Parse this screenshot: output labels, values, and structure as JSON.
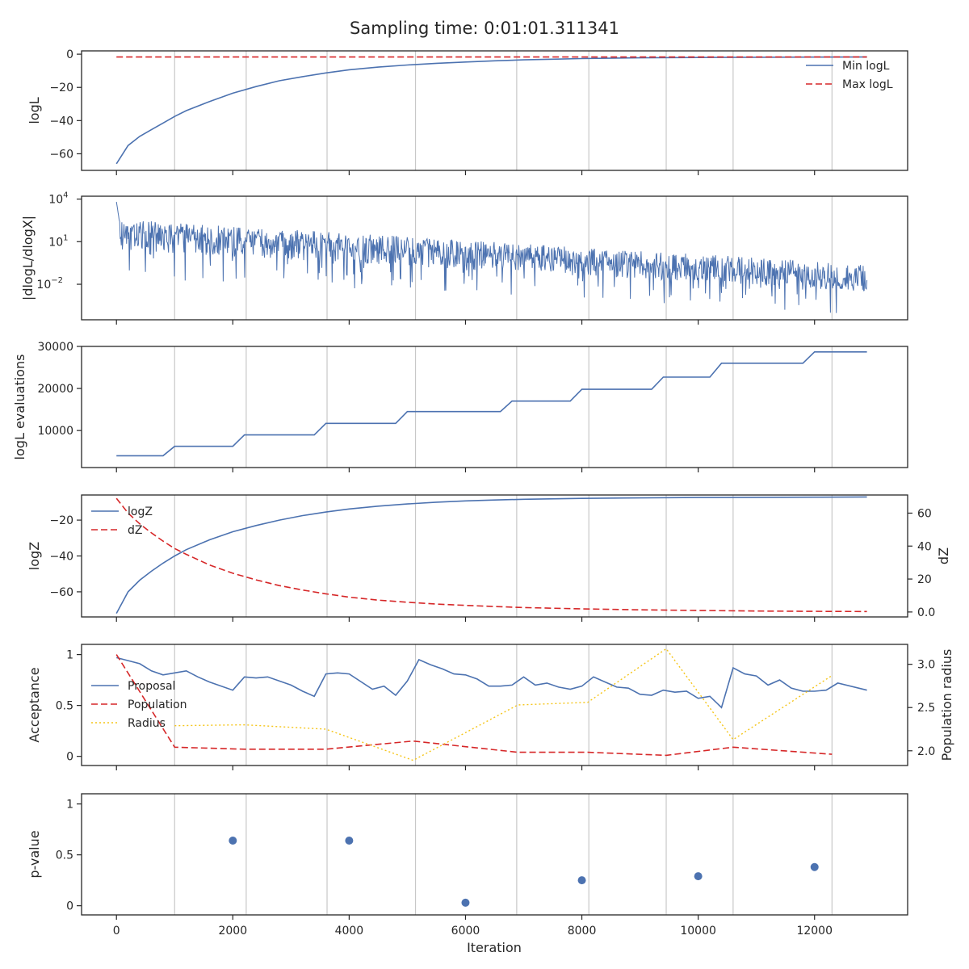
{
  "title": "Sampling time: 0:01:01.311341",
  "x_axis": {
    "label": "Iteration",
    "range": [
      -600,
      13600
    ],
    "ticks": [
      0,
      2000,
      4000,
      6000,
      8000,
      10000,
      12000
    ]
  },
  "vertical_markers": [
    1000,
    2230,
    3620,
    5140,
    6880,
    8120,
    9450,
    10600,
    12300
  ],
  "colors": {
    "blue": "#4c72b0",
    "red": "#d62728",
    "yellow": "#f5c518",
    "grid": "#c8c8c8"
  },
  "chart_data": [
    {
      "type": "line",
      "ylabel": "logL",
      "ylim": [
        -70,
        2
      ],
      "yticks": [
        0,
        -20,
        -40,
        -60
      ],
      "legend": "top-right",
      "series": [
        {
          "name": "Min logL",
          "style": "solid",
          "color": "#4c72b0",
          "x": [
            0,
            200,
            400,
            600,
            800,
            1000,
            1200,
            1600,
            2000,
            2400,
            2800,
            3200,
            3600,
            4000,
            4500,
            5000,
            5500,
            6000,
            6500,
            7000,
            7500,
            8000,
            9000,
            10000,
            11000,
            12000,
            12900
          ],
          "y": [
            -66,
            -55,
            -49.5,
            -45.5,
            -41.5,
            -37.5,
            -34,
            -28.5,
            -23.5,
            -19.5,
            -16,
            -13.5,
            -11.3,
            -9.4,
            -7.8,
            -6.5,
            -5.5,
            -4.7,
            -4.0,
            -3.4,
            -3.0,
            -2.6,
            -2.2,
            -2.0,
            -1.85,
            -1.75,
            -1.7
          ]
        },
        {
          "name": "Max logL",
          "style": "dashed",
          "color": "#d62728",
          "x": [
            0,
            12900
          ],
          "y": [
            -1.7,
            -1.7
          ]
        }
      ]
    },
    {
      "type": "line",
      "ylabel": "|dlogL/dlogX|",
      "scale": "log",
      "ylim_exp": [
        -4.5,
        4.2
      ],
      "ytick_exponents": [
        4,
        1,
        -2
      ],
      "series": [
        {
          "color": "#4c72b0",
          "x_range": [
            0,
            12900
          ],
          "upper_log": [
            2.6,
            -0.6
          ],
          "median_log": [
            1.9,
            -1.7
          ],
          "lower_log": [
            0.4,
            -2.5
          ],
          "spike_min_log": [
            -1.5,
            -4.2
          ],
          "peak_log": 3.8
        }
      ]
    },
    {
      "type": "line",
      "ylabel": "logL evaluations",
      "ylim": [
        1200,
        30000
      ],
      "yticks": [
        10000,
        20000,
        30000
      ],
      "series": [
        {
          "color": "#4c72b0",
          "x": [
            0,
            800,
            1000,
            2000,
            2200,
            3400,
            3600,
            4800,
            5000,
            6600,
            6800,
            7800,
            8000,
            9200,
            9400,
            10200,
            10400,
            11800,
            12000,
            12900
          ],
          "y": [
            4000,
            4000,
            6250,
            6250,
            8950,
            8950,
            11700,
            11700,
            14500,
            14500,
            17000,
            17000,
            19800,
            19800,
            22700,
            22700,
            26000,
            26000,
            28700,
            28700
          ]
        }
      ]
    },
    {
      "type": "line",
      "ylabel": "logZ",
      "ylabel_right": "dZ",
      "ylim": [
        -74,
        -6
      ],
      "yticks": [
        -20,
        -40,
        -60
      ],
      "ylim_right": [
        -3,
        71
      ],
      "yticks_right": [
        0,
        20,
        40,
        60
      ],
      "legend": "top-left",
      "series": [
        {
          "name": "logZ",
          "style": "solid",
          "color": "#4c72b0",
          "axis": "left",
          "x": [
            0,
            200,
            400,
            600,
            800,
            1000,
            1200,
            1600,
            2000,
            2400,
            2800,
            3200,
            3600,
            4000,
            4500,
            5000,
            5500,
            6000,
            6500,
            7000,
            8000,
            9000,
            10000,
            11000,
            12000,
            12900
          ],
          "y": [
            -72,
            -60,
            -53.5,
            -48.5,
            -44,
            -40,
            -36.5,
            -31,
            -26.5,
            -23,
            -20,
            -17.5,
            -15.5,
            -13.8,
            -12.2,
            -11.0,
            -10.0,
            -9.3,
            -8.8,
            -8.4,
            -7.9,
            -7.6,
            -7.4,
            -7.3,
            -7.2,
            -7.1
          ]
        },
        {
          "name": "dZ",
          "style": "dashed",
          "color": "#d62728",
          "axis": "right",
          "x": [
            0,
            200,
            400,
            600,
            800,
            1000,
            1200,
            1600,
            2000,
            2400,
            2800,
            3200,
            3600,
            4000,
            4500,
            5000,
            5500,
            6000,
            6500,
            7000,
            8000,
            9000,
            10000,
            11000,
            12000,
            12900
          ],
          "y": [
            69,
            60,
            53.5,
            48,
            43,
            38.5,
            35,
            28.5,
            23.5,
            19.5,
            16,
            13.3,
            11,
            9,
            7.2,
            5.9,
            4.8,
            4.0,
            3.3,
            2.7,
            1.9,
            1.3,
            0.9,
            0.6,
            0.4,
            0.3
          ]
        }
      ]
    },
    {
      "type": "line",
      "ylabel": "Acceptance",
      "ylabel_right": "Population radius",
      "ylim": [
        -0.09,
        1.1
      ],
      "yticks": [
        0.0,
        0.5,
        1.0
      ],
      "ylim_right": [
        1.83,
        3.23
      ],
      "yticks_right": [
        2.0,
        2.5,
        3.0
      ],
      "legend": "center-left",
      "series": [
        {
          "name": "Proposal",
          "style": "solid",
          "color": "#4c72b0",
          "axis": "left",
          "x": [
            0,
            400,
            600,
            800,
            1000,
            1200,
            1400,
            1600,
            2000,
            2200,
            2400,
            2600,
            3000,
            3200,
            3400,
            3600,
            3800,
            4000,
            4400,
            4600,
            4800,
            5000,
            5200,
            5400,
            5600,
            5800,
            6000,
            6200,
            6400,
            6600,
            6800,
            7000,
            7200,
            7400,
            7600,
            7800,
            8000,
            8200,
            8400,
            8600,
            8800,
            9000,
            9200,
            9400,
            9600,
            9800,
            10000,
            10200,
            10400,
            10600,
            10800,
            11000,
            11200,
            11400,
            11600,
            11800,
            12000,
            12200,
            12400,
            12900
          ],
          "y": [
            0.97,
            0.91,
            0.84,
            0.8,
            0.82,
            0.84,
            0.78,
            0.73,
            0.65,
            0.78,
            0.77,
            0.78,
            0.7,
            0.64,
            0.59,
            0.81,
            0.82,
            0.81,
            0.66,
            0.69,
            0.6,
            0.74,
            0.95,
            0.9,
            0.86,
            0.81,
            0.8,
            0.76,
            0.69,
            0.69,
            0.7,
            0.78,
            0.7,
            0.72,
            0.68,
            0.66,
            0.69,
            0.78,
            0.73,
            0.68,
            0.67,
            0.61,
            0.6,
            0.65,
            0.63,
            0.64,
            0.57,
            0.59,
            0.48,
            0.87,
            0.81,
            0.79,
            0.7,
            0.75,
            0.67,
            0.64,
            0.64,
            0.65,
            0.72,
            0.65
          ]
        },
        {
          "name": "Population",
          "style": "dashed",
          "color": "#d62728",
          "axis": "left",
          "x": [
            0,
            1000,
            2200,
            3600,
            5100,
            6900,
            8100,
            9450,
            10600,
            12300
          ],
          "y": [
            1.0,
            0.09,
            0.07,
            0.07,
            0.15,
            0.04,
            0.04,
            0.01,
            0.09,
            0.02
          ]
        },
        {
          "name": "Radius",
          "style": "dotted",
          "color": "#f5c518",
          "axis": "right",
          "x": [
            1000,
            2200,
            3600,
            5100,
            6900,
            8100,
            9450,
            10600,
            12300
          ],
          "y": [
            2.29,
            2.3,
            2.25,
            1.89,
            2.53,
            2.56,
            3.18,
            2.13,
            2.87
          ]
        }
      ]
    },
    {
      "type": "scatter",
      "ylabel": "p-value",
      "ylim": [
        -0.09,
        1.1
      ],
      "yticks": [
        0.0,
        0.5,
        1.0
      ],
      "series": [
        {
          "color": "#4c72b0",
          "x": [
            2000,
            4000,
            6000,
            8000,
            10000,
            12000
          ],
          "y": [
            0.64,
            0.64,
            0.03,
            0.25,
            0.29,
            0.38
          ]
        }
      ]
    }
  ]
}
